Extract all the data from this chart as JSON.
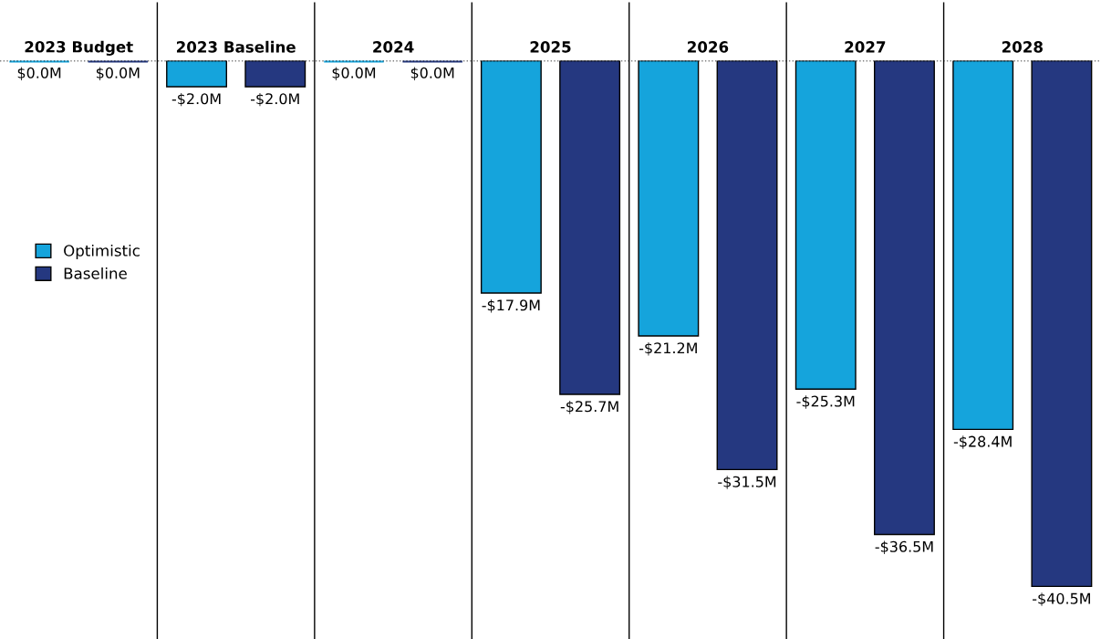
{
  "chart_data": {
    "type": "bar",
    "categories": [
      "2023 Budget",
      "2023 Baseline",
      "2024",
      "2025",
      "2026",
      "2027",
      "2028"
    ],
    "series": [
      {
        "name": "Optimistic",
        "color": "#15a4dc",
        "values": [
          0.0,
          -2.0,
          0.0,
          -17.9,
          -21.2,
          -25.3,
          -28.4
        ],
        "value_labels": [
          "$0.0M",
          "-$2.0M",
          "$0.0M",
          "-$17.9M",
          "-$21.2M",
          "-$25.3M",
          "-$28.4M"
        ]
      },
      {
        "name": "Baseline",
        "color": "#253880",
        "values": [
          0.0,
          -2.0,
          0.0,
          -25.7,
          -31.5,
          -36.5,
          -40.5
        ],
        "value_labels": [
          "$0.0M",
          "-$2.0M",
          "$0.0M",
          "-$25.7M",
          "-$31.5M",
          "-$36.5M",
          "-$40.5M"
        ]
      }
    ],
    "legend": "center left",
    "grid": false
  }
}
